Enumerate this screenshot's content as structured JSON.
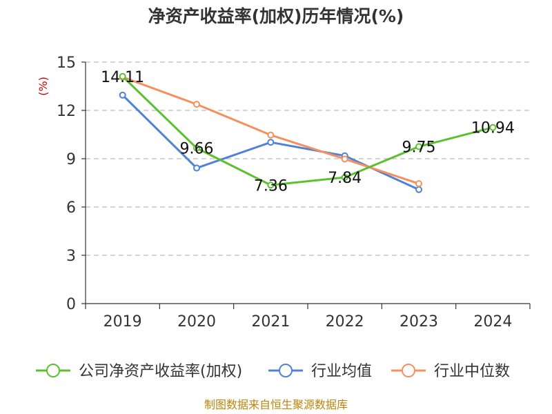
{
  "chart_data": {
    "type": "line",
    "title": "净资产收益率(加权)历年情况(%)",
    "ylabel": "(%)",
    "xlabel": "",
    "categories": [
      "2019",
      "2020",
      "2021",
      "2022",
      "2023",
      "2024"
    ],
    "ylim": [
      0,
      15
    ],
    "yticks": [
      0,
      3,
      6,
      9,
      12,
      15
    ],
    "grid": "horizontal dashed",
    "legend_position": "bottom",
    "series": [
      {
        "name": "公司净资产收益率(加权)",
        "color": "#5ac02e",
        "values": [
          14.11,
          9.66,
          7.36,
          7.84,
          9.75,
          10.94
        ],
        "labels": [
          "14.11",
          "9.66",
          "7.36",
          "7.84",
          "9.75",
          "10.94"
        ]
      },
      {
        "name": "行业均值",
        "color": "#4f81d8",
        "values": [
          12.95,
          8.42,
          10.02,
          9.18,
          7.08,
          null
        ]
      },
      {
        "name": "行业中位数",
        "color": "#f5905e",
        "values": [
          14.07,
          12.38,
          10.47,
          8.98,
          7.45,
          null
        ]
      }
    ],
    "source": "制图数据来自恒生聚源数据库"
  }
}
